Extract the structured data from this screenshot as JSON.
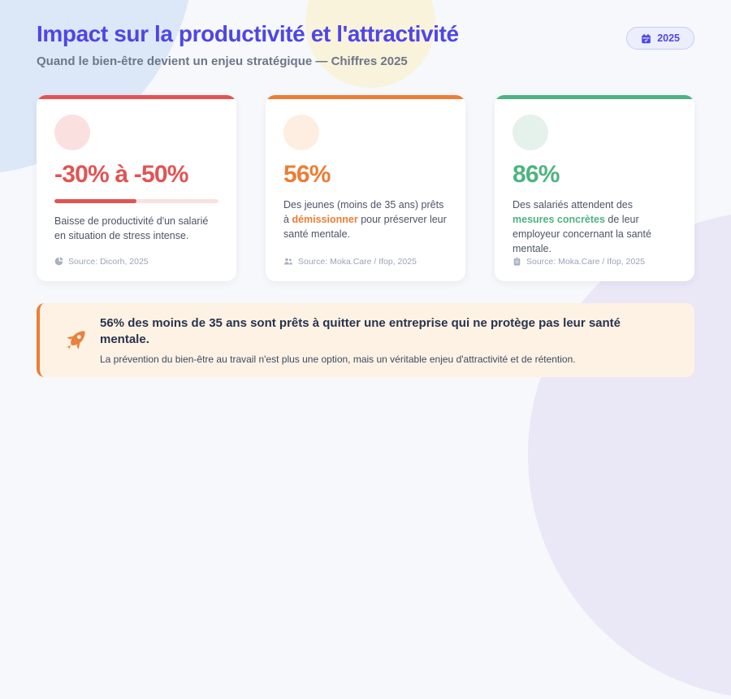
{
  "page": {
    "title": "Impact sur la productivité et l'attractivité",
    "subtitle": "Quand le bien-être devient un enjeu stratégique — Chiffres 2025",
    "badge": {
      "icon": "calendar-icon",
      "label": "2025"
    }
  },
  "colors": {
    "background": "#f6f8fb",
    "title": "#4f46e5",
    "red": "#e15454",
    "orange": "#ec7d35",
    "green": "#4db381",
    "callout_background": "#fdf2e4"
  },
  "cards": [
    {
      "accent": "#e15454",
      "accent_light": "#fae1e0",
      "stat": "-30% à -50%",
      "progress_percent": 50,
      "text_before": "Baisse de productivité d'un salarié en situation de stress intense.",
      "highlight": "",
      "text_after": "",
      "icon": "pie-chart-icon",
      "source": "Source: Dicorh, 2025"
    },
    {
      "accent": "#ec7d35",
      "accent_light": "#fdeee1",
      "stat": "56%",
      "text_before": "Des jeunes (moins de 35 ans) prêts à ",
      "highlight": "démissionner",
      "text_after": " pour préserver leur santé mentale.",
      "icon": "users-icon",
      "source": "Source: Moka.Care / Ifop, 2025"
    },
    {
      "accent": "#4db381",
      "accent_light": "#e4f2eb",
      "stat": "86%",
      "text_before": "Des salariés attendent des ",
      "highlight": "mesures concrètes",
      "text_after": " de leur employeur concernant la santé mentale.",
      "icon": "clipboard-icon",
      "source": "Source: Moka.Care / Ifop, 2025"
    }
  ],
  "callout": {
    "icon": "rocket-icon",
    "title": "56% des moins de 35 ans sont prêts à quitter une entreprise qui ne protège pas leur santé mentale.",
    "subtitle": "La prévention du bien-être au travail n'est plus une option, mais un véritable enjeu d'attractivité et de rétention."
  }
}
